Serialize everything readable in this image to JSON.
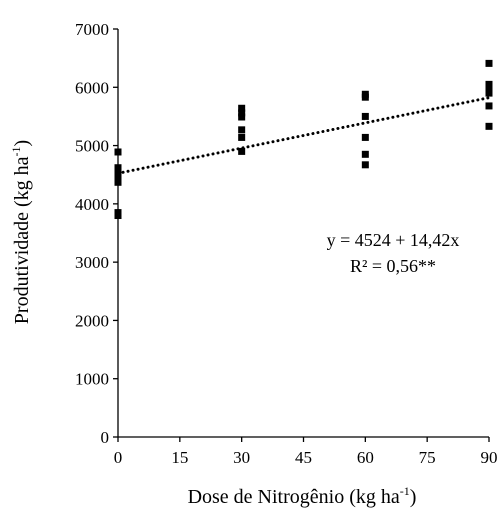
{
  "chart_data": {
    "type": "scatter",
    "xlabel": "Dose de Nitrogênio (kg ha",
    "xlabel_sup": "-1",
    "xlabel_end": ")",
    "ylabel": "Produtividade (kg ha",
    "ylabel_sup": "-1",
    "ylabel_end": ")",
    "xlim": [
      0,
      90
    ],
    "ylim": [
      0,
      7000
    ],
    "x_ticks": [
      0,
      15,
      30,
      45,
      60,
      75,
      90
    ],
    "y_ticks": [
      0,
      1000,
      2000,
      3000,
      4000,
      5000,
      6000,
      7000
    ],
    "grid": false,
    "series": [
      {
        "marker": "square",
        "color": "#000000",
        "points": [
          {
            "x": 0,
            "y": 4890
          },
          {
            "x": 0,
            "y": 4620
          },
          {
            "x": 0,
            "y": 4560
          },
          {
            "x": 0,
            "y": 4500
          },
          {
            "x": 0,
            "y": 4440
          },
          {
            "x": 0,
            "y": 4370
          },
          {
            "x": 0,
            "y": 3850
          },
          {
            "x": 0,
            "y": 3800
          },
          {
            "x": 30,
            "y": 5640
          },
          {
            "x": 30,
            "y": 5560
          },
          {
            "x": 30,
            "y": 5490
          },
          {
            "x": 30,
            "y": 5270
          },
          {
            "x": 30,
            "y": 5140
          },
          {
            "x": 30,
            "y": 4900
          },
          {
            "x": 60,
            "y": 5880
          },
          {
            "x": 60,
            "y": 5830
          },
          {
            "x": 60,
            "y": 5500
          },
          {
            "x": 60,
            "y": 5140
          },
          {
            "x": 60,
            "y": 4850
          },
          {
            "x": 60,
            "y": 4670
          },
          {
            "x": 90,
            "y": 6410
          },
          {
            "x": 90,
            "y": 6050
          },
          {
            "x": 90,
            "y": 5960
          },
          {
            "x": 90,
            "y": 5900
          },
          {
            "x": 90,
            "y": 5680
          },
          {
            "x": 90,
            "y": 5330
          }
        ]
      }
    ],
    "trendline": {
      "style": "dotted",
      "intercept": 4524,
      "slope": 14.42,
      "x_range": [
        0,
        90
      ]
    },
    "annotations": {
      "equation": "y = 4524  + 14,42x",
      "r2": "R² = 0,56**"
    }
  }
}
